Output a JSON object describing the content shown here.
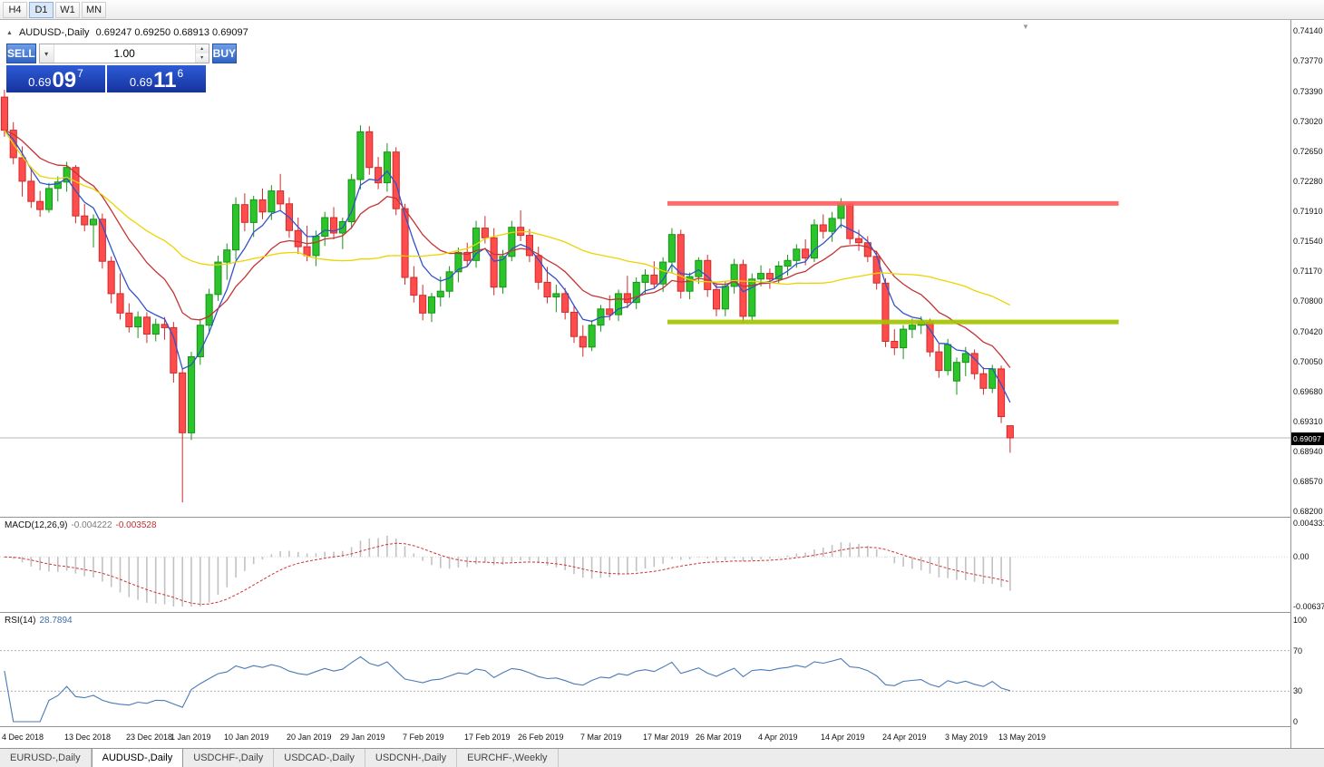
{
  "toolbar": {
    "timeframes": [
      "H4",
      "D1",
      "W1",
      "MN"
    ],
    "active": "D1"
  },
  "icons": {
    "collapse": "▲",
    "dropdown": "▾",
    "spin_up": "▴",
    "spin_down": "▾",
    "scroll_end": "▼"
  },
  "chart_header": {
    "symbol": "AUDUSD-,Daily",
    "ohlc": "0.69247 0.69250 0.68913 0.69097"
  },
  "trade_panel": {
    "sell_label": "SELL",
    "buy_label": "BUY",
    "volume": "1.00",
    "sell_price": {
      "prefix": "0.69",
      "pips": "09",
      "point": "7"
    },
    "buy_price": {
      "prefix": "0.69",
      "pips": "11",
      "point": "6"
    }
  },
  "colors": {
    "bull": "#2bc42b",
    "bull_stroke": "#179417",
    "bear": "#ff4d4d",
    "bear_stroke": "#d32a2a",
    "ma_fast": "#3352c8",
    "ma_mid": "#c53434",
    "ma_slow": "#ecd400",
    "resistance": "#ff5f5f",
    "support": "#a4c400",
    "bid_line": "#b4b4b4",
    "macd_hist": "#c2c2c2",
    "macd_signal": "#cf3434",
    "rsi_line": "#4a7ab5",
    "rsi_level": "#b0b0b0"
  },
  "tabs": [
    {
      "label": "EURUSD-,Daily",
      "active": false
    },
    {
      "label": "AUDUSD-,Daily",
      "active": true
    },
    {
      "label": "USDCHF-,Daily",
      "active": false
    },
    {
      "label": "USDCAD-,Daily",
      "active": false
    },
    {
      "label": "USDCNH-,Daily",
      "active": false
    },
    {
      "label": "EURCHF-,Weekly",
      "active": false
    }
  ],
  "chart_data": {
    "type": "candlestick",
    "symbol": "AUDUSD",
    "timeframe": "Daily",
    "ylim": [
      0.682,
      0.7414
    ],
    "slots_total": 145,
    "current_price": 0.69097,
    "current_price_label": "0.69097",
    "price_axis_labels": [
      "0.74140",
      "0.73770",
      "0.73390",
      "0.73020",
      "0.72650",
      "0.72280",
      "0.71910",
      "0.71540",
      "0.71170",
      "0.70800",
      "0.70420",
      "0.70050",
      "0.69680",
      "0.69310",
      "0.68940",
      "0.68570",
      "0.68200"
    ],
    "moving_averages": [
      {
        "name": "ma-fast-line",
        "type": "ema",
        "period": 5,
        "color_key": "ma_fast"
      },
      {
        "name": "ma-mid-line",
        "type": "ema",
        "period": 13,
        "color_key": "ma_mid"
      },
      {
        "name": "ma-slow-line",
        "type": "sma",
        "period": 34,
        "color_key": "ma_slow"
      }
    ],
    "hlines": [
      {
        "name": "resistance-line",
        "price": 0.71995,
        "from_slot": 75,
        "to_slot": 125.7,
        "width": 5,
        "color_key": "resistance"
      },
      {
        "name": "support-line",
        "price": 0.7053,
        "from_slot": 75,
        "to_slot": 125.7,
        "width": 5,
        "color_key": "support"
      }
    ],
    "macd": {
      "title": "MACD(12,26,9)",
      "value_main": "-0.004222",
      "value_signal": "-0.003528",
      "params": [
        12,
        26,
        9
      ],
      "axis_labels": [
        "0.004331",
        "0.00",
        "-0.006371"
      ],
      "axis_range": [
        0.004331,
        -0.006371
      ]
    },
    "rsi": {
      "title": "RSI(14)",
      "value": "28.7894",
      "period": 14,
      "levels": [
        70,
        30
      ],
      "axis_labels": [
        "100",
        "70",
        "30",
        "0"
      ]
    },
    "x_axis_labels": [
      {
        "text": "4 Dec 2018",
        "idx": 0
      },
      {
        "text": "13 Dec 2018",
        "idx": 7
      },
      {
        "text": "23 Dec 2018",
        "idx": 14
      },
      {
        "text": "1 Jan 2019",
        "idx": 19
      },
      {
        "text": "10 Jan 2019",
        "idx": 25
      },
      {
        "text": "20 Jan 2019",
        "idx": 32
      },
      {
        "text": "29 Jan 2019",
        "idx": 38
      },
      {
        "text": "7 Feb 2019",
        "idx": 45
      },
      {
        "text": "17 Feb 2019",
        "idx": 52
      },
      {
        "text": "26 Feb 2019",
        "idx": 58
      },
      {
        "text": "7 Mar 2019",
        "idx": 65
      },
      {
        "text": "17 Mar 2019",
        "idx": 72
      },
      {
        "text": "26 Mar 2019",
        "idx": 78
      },
      {
        "text": "4 Apr 2019",
        "idx": 85
      },
      {
        "text": "14 Apr 2019",
        "idx": 92
      },
      {
        "text": "24 Apr 2019",
        "idx": 99
      },
      {
        "text": "3 May 2019",
        "idx": 106
      },
      {
        "text": "13 May 2019",
        "idx": 112
      }
    ],
    "candles": [
      [
        "2018.12.04",
        0.7331,
        0.734,
        0.7282,
        0.729
      ],
      [
        "2018.12.05",
        0.729,
        0.73,
        0.7248,
        0.7256
      ],
      [
        "2018.12.06",
        0.7256,
        0.727,
        0.7208,
        0.7227
      ],
      [
        "2018.12.07",
        0.7227,
        0.7245,
        0.7194,
        0.7202
      ],
      [
        "2018.12.10",
        0.7202,
        0.7215,
        0.7183,
        0.7192
      ],
      [
        "2018.12.11",
        0.7192,
        0.7225,
        0.7188,
        0.7218
      ],
      [
        "2018.12.12",
        0.7218,
        0.7233,
        0.7202,
        0.7226
      ],
      [
        "2018.12.13",
        0.7226,
        0.7251,
        0.7214,
        0.7244
      ],
      [
        "2018.12.14",
        0.7244,
        0.7247,
        0.7175,
        0.7184
      ],
      [
        "2018.12.17",
        0.7184,
        0.7199,
        0.7165,
        0.7173
      ],
      [
        "2018.12.18",
        0.7173,
        0.7186,
        0.7145,
        0.718
      ],
      [
        "2018.12.19",
        0.718,
        0.7187,
        0.7119,
        0.7128
      ],
      [
        "2018.12.20",
        0.7128,
        0.7134,
        0.7076,
        0.7088
      ],
      [
        "2018.12.21",
        0.7088,
        0.7113,
        0.7056,
        0.7064
      ],
      [
        "2018.12.24",
        0.7064,
        0.7076,
        0.704,
        0.7047
      ],
      [
        "2018.12.26",
        0.7047,
        0.7066,
        0.7033,
        0.7059
      ],
      [
        "2018.12.27",
        0.7059,
        0.7065,
        0.7027,
        0.7038
      ],
      [
        "2018.12.28",
        0.7038,
        0.7057,
        0.7029,
        0.705
      ],
      [
        "2018.12.31",
        0.705,
        0.7059,
        0.7031,
        0.7046
      ],
      [
        "2019.01.02",
        0.7046,
        0.7053,
        0.6978,
        0.699
      ],
      [
        "2019.01.03",
        0.699,
        0.6996,
        0.683,
        0.6916
      ],
      [
        "2019.01.04",
        0.6916,
        0.7016,
        0.6907,
        0.701
      ],
      [
        "2019.01.07",
        0.701,
        0.7057,
        0.7,
        0.7049
      ],
      [
        "2019.01.08",
        0.7049,
        0.7094,
        0.7038,
        0.7087
      ],
      [
        "2019.01.09",
        0.7087,
        0.7135,
        0.7079,
        0.7127
      ],
      [
        "2019.01.10",
        0.7127,
        0.715,
        0.7105,
        0.7142
      ],
      [
        "2019.01.11",
        0.7142,
        0.7207,
        0.713,
        0.7198
      ],
      [
        "2019.01.14",
        0.7198,
        0.7212,
        0.7165,
        0.7176
      ],
      [
        "2019.01.15",
        0.7176,
        0.7209,
        0.7158,
        0.7204
      ],
      [
        "2019.01.16",
        0.7204,
        0.7218,
        0.718,
        0.7189
      ],
      [
        "2019.01.17",
        0.7189,
        0.7222,
        0.7179,
        0.7215
      ],
      [
        "2019.01.18",
        0.7215,
        0.7236,
        0.7191,
        0.7199
      ],
      [
        "2019.01.21",
        0.7199,
        0.7207,
        0.7157,
        0.7166
      ],
      [
        "2019.01.22",
        0.7166,
        0.7182,
        0.7137,
        0.7146
      ],
      [
        "2019.01.23",
        0.7146,
        0.7172,
        0.7128,
        0.7135
      ],
      [
        "2019.01.24",
        0.7135,
        0.7166,
        0.7122,
        0.7159
      ],
      [
        "2019.01.25",
        0.7159,
        0.7189,
        0.7147,
        0.7182
      ],
      [
        "2019.01.28",
        0.7182,
        0.7195,
        0.7155,
        0.7163
      ],
      [
        "2019.01.29",
        0.7163,
        0.7182,
        0.7143,
        0.7177
      ],
      [
        "2019.01.30",
        0.7177,
        0.7236,
        0.7168,
        0.7229
      ],
      [
        "2019.01.31",
        0.7229,
        0.7296,
        0.7217,
        0.7288
      ],
      [
        "2019.02.01",
        0.7288,
        0.7295,
        0.7235,
        0.7244
      ],
      [
        "2019.02.04",
        0.7244,
        0.7257,
        0.7217,
        0.7225
      ],
      [
        "2019.02.05",
        0.7225,
        0.7274,
        0.7214,
        0.7263
      ],
      [
        "2019.02.06",
        0.7263,
        0.7269,
        0.7185,
        0.7193
      ],
      [
        "2019.02.07",
        0.7193,
        0.7199,
        0.7099,
        0.7108
      ],
      [
        "2019.02.08",
        0.7108,
        0.7122,
        0.7077,
        0.7086
      ],
      [
        "2019.02.11",
        0.7086,
        0.7099,
        0.7055,
        0.7064
      ],
      [
        "2019.02.12",
        0.7064,
        0.7089,
        0.7053,
        0.7084
      ],
      [
        "2019.02.13",
        0.7084,
        0.7109,
        0.7072,
        0.7091
      ],
      [
        "2019.02.14",
        0.7091,
        0.7122,
        0.7083,
        0.7115
      ],
      [
        "2019.02.15",
        0.7115,
        0.7145,
        0.7102,
        0.7139
      ],
      [
        "2019.02.18",
        0.7139,
        0.7151,
        0.7121,
        0.7129
      ],
      [
        "2019.02.19",
        0.7129,
        0.7178,
        0.712,
        0.7169
      ],
      [
        "2019.02.20",
        0.7169,
        0.7184,
        0.715,
        0.7157
      ],
      [
        "2019.02.21",
        0.7157,
        0.7169,
        0.7086,
        0.7096
      ],
      [
        "2019.02.22",
        0.7096,
        0.7142,
        0.7088,
        0.7134
      ],
      [
        "2019.02.25",
        0.7134,
        0.7178,
        0.7128,
        0.717
      ],
      [
        "2019.02.26",
        0.717,
        0.7191,
        0.7153,
        0.716
      ],
      [
        "2019.02.27",
        0.716,
        0.7168,
        0.7127,
        0.7135
      ],
      [
        "2019.02.28",
        0.7135,
        0.7146,
        0.7093,
        0.7102
      ],
      [
        "2019.03.01",
        0.7102,
        0.7121,
        0.7076,
        0.7084
      ],
      [
        "2019.03.04",
        0.7084,
        0.7099,
        0.7065,
        0.7088
      ],
      [
        "2019.03.05",
        0.7088,
        0.7095,
        0.7056,
        0.7065
      ],
      [
        "2019.03.06",
        0.7065,
        0.7073,
        0.7027,
        0.7035
      ],
      [
        "2019.03.07",
        0.7035,
        0.7049,
        0.701,
        0.7022
      ],
      [
        "2019.03.08",
        0.7022,
        0.7055,
        0.7017,
        0.7049
      ],
      [
        "2019.03.11",
        0.7049,
        0.7074,
        0.7041,
        0.7069
      ],
      [
        "2019.03.12",
        0.7069,
        0.7086,
        0.7055,
        0.7062
      ],
      [
        "2019.03.13",
        0.7062,
        0.7093,
        0.7054,
        0.7088
      ],
      [
        "2019.03.14",
        0.7088,
        0.711,
        0.707,
        0.7077
      ],
      [
        "2019.03.15",
        0.7077,
        0.7108,
        0.7069,
        0.7102
      ],
      [
        "2019.03.18",
        0.7102,
        0.7118,
        0.7087,
        0.7111
      ],
      [
        "2019.03.19",
        0.7111,
        0.7128,
        0.7094,
        0.71
      ],
      [
        "2019.03.20",
        0.71,
        0.7133,
        0.709,
        0.7127
      ],
      [
        "2019.03.21",
        0.7127,
        0.7169,
        0.7113,
        0.7161
      ],
      [
        "2019.03.22",
        0.7161,
        0.7167,
        0.7082,
        0.7091
      ],
      [
        "2019.03.25",
        0.7091,
        0.7114,
        0.7081,
        0.7109
      ],
      [
        "2019.03.26",
        0.7109,
        0.7133,
        0.71,
        0.7129
      ],
      [
        "2019.03.27",
        0.7129,
        0.7136,
        0.7084,
        0.7093
      ],
      [
        "2019.03.28",
        0.7093,
        0.7101,
        0.706,
        0.7069
      ],
      [
        "2019.03.29",
        0.7069,
        0.7104,
        0.706,
        0.7097
      ],
      [
        "2019.04.01",
        0.7097,
        0.7131,
        0.7088,
        0.7124
      ],
      [
        "2019.04.02",
        0.7124,
        0.713,
        0.7051,
        0.706
      ],
      [
        "2019.04.03",
        0.706,
        0.7113,
        0.7055,
        0.7106
      ],
      [
        "2019.04.04",
        0.7106,
        0.7123,
        0.7097,
        0.7113
      ],
      [
        "2019.04.05",
        0.7113,
        0.7119,
        0.7094,
        0.7106
      ],
      [
        "2019.04.08",
        0.7106,
        0.7128,
        0.71,
        0.7122
      ],
      [
        "2019.04.09",
        0.7122,
        0.7136,
        0.711,
        0.7129
      ],
      [
        "2019.04.10",
        0.7129,
        0.7149,
        0.712,
        0.7143
      ],
      [
        "2019.04.11",
        0.7143,
        0.7155,
        0.7123,
        0.7132
      ],
      [
        "2019.04.12",
        0.7132,
        0.718,
        0.7127,
        0.7173
      ],
      [
        "2019.04.15",
        0.7173,
        0.7186,
        0.7156,
        0.7165
      ],
      [
        "2019.04.16",
        0.7165,
        0.7189,
        0.7152,
        0.7181
      ],
      [
        "2019.04.17",
        0.7181,
        0.7206,
        0.7169,
        0.7199
      ],
      [
        "2019.04.18",
        0.7199,
        0.7201,
        0.7149,
        0.7156
      ],
      [
        "2019.04.19",
        0.7156,
        0.7167,
        0.7141,
        0.7151
      ],
      [
        "2019.04.22",
        0.7151,
        0.7159,
        0.7127,
        0.7134
      ],
      [
        "2019.04.23",
        0.7134,
        0.7141,
        0.7093,
        0.7101
      ],
      [
        "2019.04.24",
        0.7101,
        0.7107,
        0.7022,
        0.7029
      ],
      [
        "2019.04.25",
        0.7029,
        0.7044,
        0.7012,
        0.7021
      ],
      [
        "2019.04.26",
        0.7021,
        0.7049,
        0.7007,
        0.7044
      ],
      [
        "2019.04.29",
        0.7044,
        0.7057,
        0.7033,
        0.7049
      ],
      [
        "2019.04.30",
        0.7049,
        0.706,
        0.7038,
        0.7053
      ],
      [
        "2019.05.01",
        0.7053,
        0.7057,
        0.701,
        0.7016
      ],
      [
        "2019.05.02",
        0.7016,
        0.7026,
        0.6984,
        0.6993
      ],
      [
        "2019.05.03",
        0.6993,
        0.7032,
        0.6987,
        0.7025
      ],
      [
        "2019.05.06",
        0.698,
        0.7009,
        0.6963,
        0.7003
      ],
      [
        "2019.05.07",
        0.7003,
        0.7022,
        0.6986,
        0.7014
      ],
      [
        "2019.05.08",
        0.7014,
        0.7019,
        0.6982,
        0.6989
      ],
      [
        "2019.05.09",
        0.6989,
        0.6997,
        0.6963,
        0.6971
      ],
      [
        "2019.05.10",
        0.6971,
        0.7,
        0.6965,
        0.6995
      ],
      [
        "2019.05.13",
        0.6995,
        0.6999,
        0.6928,
        0.6936
      ],
      [
        "2019.05.14",
        0.69247,
        0.6925,
        0.68913,
        0.69097
      ]
    ]
  }
}
